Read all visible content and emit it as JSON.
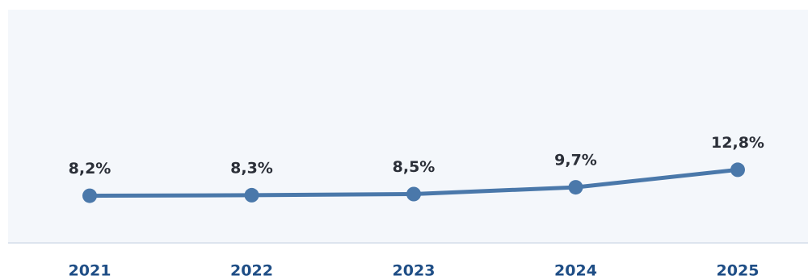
{
  "chart_data": {
    "type": "line",
    "categories": [
      "2021",
      "2022",
      "2023",
      "2024",
      "2025"
    ],
    "values": [
      8.2,
      8.3,
      8.5,
      9.7,
      12.8
    ],
    "value_labels": [
      "8,2%",
      "8,3%",
      "8,5%",
      "9,7%",
      "12,8%"
    ],
    "color": "#4a78aa",
    "ylim": [
      0,
      40
    ]
  }
}
